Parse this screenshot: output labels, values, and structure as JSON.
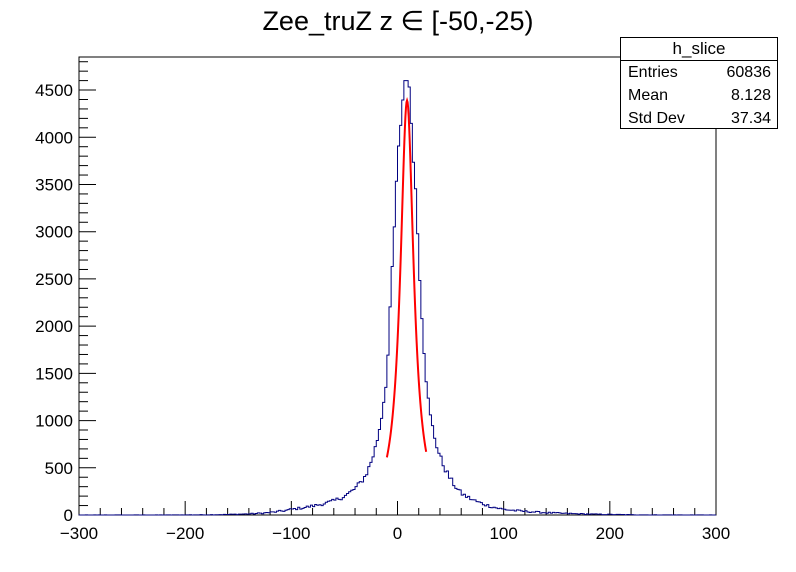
{
  "chart_data": {
    "type": "histogram",
    "title": "Zee_truZ z  ∈ [-50,-25)",
    "xlim": [
      -300,
      300
    ],
    "ylim": [
      0,
      4850
    ],
    "x_ticks": [
      -300,
      -200,
      -100,
      0,
      100,
      200,
      300
    ],
    "y_ticks": [
      0,
      500,
      1000,
      1500,
      2000,
      2500,
      3000,
      3500,
      4000,
      4500
    ],
    "bin_width": 2,
    "series": [
      {
        "kind": "histogram",
        "color": "#000080",
        "peak_x": 8,
        "peak_y": 4600,
        "x": [
          -100,
          -80,
          -60,
          -50,
          -40,
          -30,
          -20,
          -15,
          -10,
          -6,
          -2,
          2,
          5,
          8,
          11,
          14,
          18,
          22,
          26,
          30,
          40,
          50,
          60,
          80,
          100,
          150,
          200
        ],
        "y": [
          60,
          95,
          150,
          200,
          280,
          420,
          750,
          1050,
          1500,
          2400,
          3300,
          4050,
          4400,
          4600,
          4450,
          4050,
          3250,
          2350,
          1600,
          1100,
          620,
          380,
          230,
          120,
          60,
          20,
          6
        ]
      },
      {
        "kind": "fit",
        "color": "#ff0000",
        "x_range": [
          -10,
          27
        ],
        "peak_x": 9,
        "peak_y": 4390
      }
    ],
    "stats_box": {
      "title": "h_slice",
      "rows": [
        {
          "label": "Entries",
          "value": "60836"
        },
        {
          "label": "Mean",
          "value": "8.128"
        },
        {
          "label": "Std Dev",
          "value": "37.34"
        }
      ]
    }
  }
}
